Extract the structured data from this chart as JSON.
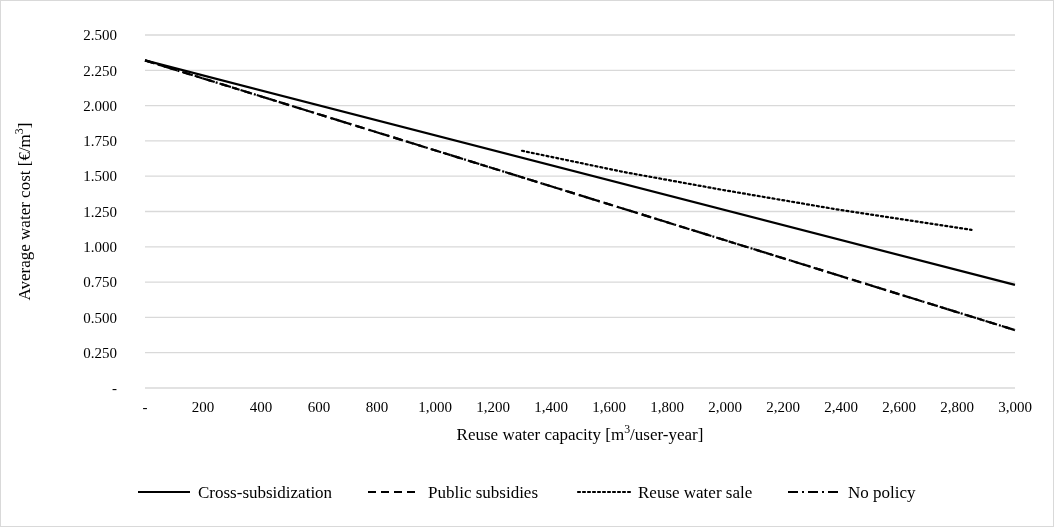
{
  "chart_data": {
    "type": "line",
    "xlabel": "Reuse water capacity [m$^{3}$/user-year]",
    "ylabel": "Average water cost [€/m$^{3}$]",
    "xlim": [
      0,
      3000
    ],
    "xticks": [
      {
        "value": 0,
        "label": "-"
      },
      {
        "value": 200,
        "label": "200"
      },
      {
        "value": 400,
        "label": "400"
      },
      {
        "value": 600,
        "label": "600"
      },
      {
        "value": 800,
        "label": "800"
      },
      {
        "value": 1000,
        "label": "1,000"
      },
      {
        "value": 1200,
        "label": "1,200"
      },
      {
        "value": 1400,
        "label": "1,400"
      },
      {
        "value": 1600,
        "label": "1,600"
      },
      {
        "value": 1800,
        "label": "1,800"
      },
      {
        "value": 2000,
        "label": "2,000"
      },
      {
        "value": 2200,
        "label": "2,200"
      },
      {
        "value": 2400,
        "label": "2,400"
      },
      {
        "value": 2600,
        "label": "2,600"
      },
      {
        "value": 2800,
        "label": "2,800"
      },
      {
        "value": 3000,
        "label": "3,000"
      }
    ],
    "ylim": [
      0,
      2.5
    ],
    "yticks": [
      {
        "value": 0,
        "label": "-"
      },
      {
        "value": 0.25,
        "label": "0.250"
      },
      {
        "value": 0.5,
        "label": "0.500"
      },
      {
        "value": 0.75,
        "label": "0.750"
      },
      {
        "value": 1,
        "label": "1.000"
      },
      {
        "value": 1.25,
        "label": "1.250"
      },
      {
        "value": 1.5,
        "label": "1.500"
      },
      {
        "value": 1.75,
        "label": "1.750"
      },
      {
        "value": 2,
        "label": "2.000"
      },
      {
        "value": 2.25,
        "label": "2.250"
      },
      {
        "value": 2.5,
        "label": "2.500"
      }
    ],
    "grid": "y",
    "legend": "bottom",
    "marker": "none",
    "series": [
      {
        "name": "Cross-subsidization",
        "color": "#000000",
        "line_style": "solid",
        "x": [
          0,
          3000
        ],
        "values": [
          2.32,
          0.73
        ]
      },
      {
        "name": "Public subsidies",
        "color": "#000000",
        "line_style": "dashed",
        "x": [
          0,
          3000
        ],
        "values": [
          2.32,
          0.41
        ]
      },
      {
        "name": "Reuse water sale",
        "color": "#000000",
        "line_style": "dotted",
        "x": [
          1300,
          1650,
          2000,
          2400,
          2850
        ],
        "values": [
          1.68,
          1.53,
          1.4,
          1.26,
          1.12
        ]
      },
      {
        "name": "No policy",
        "color": "#000000",
        "line_style": "dashdot",
        "x": [
          0,
          3000
        ],
        "values": [
          2.32,
          0.41
        ]
      }
    ]
  }
}
